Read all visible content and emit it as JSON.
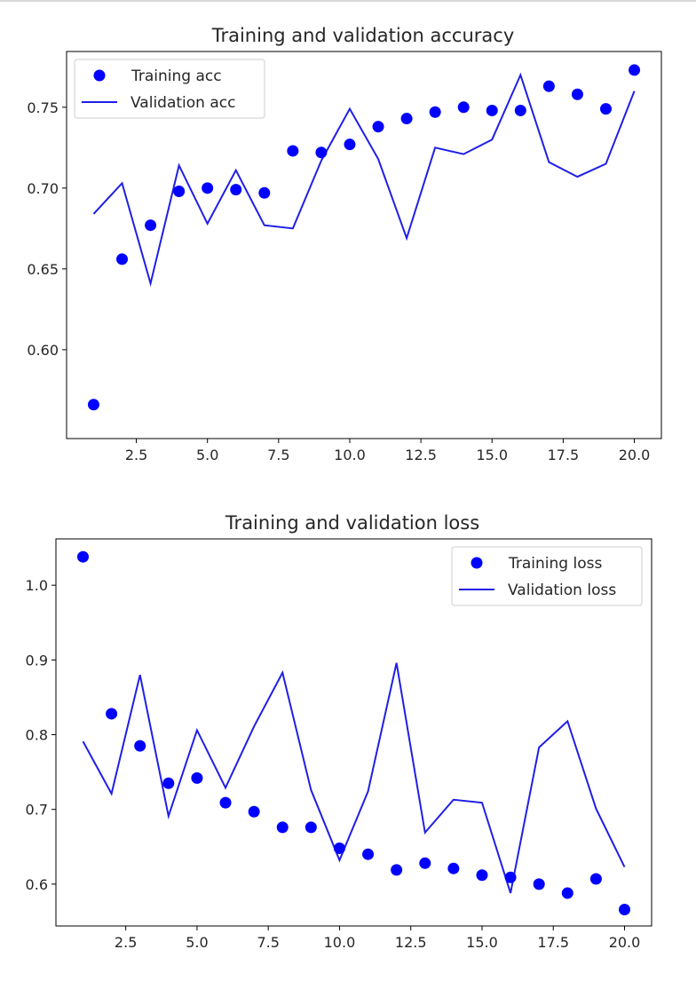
{
  "chart_data": [
    {
      "type": "line",
      "title": "Training and validation accuracy",
      "xlabel": "",
      "ylabel": "",
      "xlim": [
        0.05,
        20.95
      ],
      "ylim": [
        0.545,
        0.7845
      ],
      "x_ticks": [
        2.5,
        5.0,
        7.5,
        10.0,
        12.5,
        15.0,
        17.5,
        20.0
      ],
      "x_tick_labels": [
        "2.5",
        "5.0",
        "7.5",
        "10.0",
        "12.5",
        "15.0",
        "17.5",
        "20.0"
      ],
      "y_ticks": [
        0.6,
        0.65,
        0.7,
        0.75
      ],
      "y_tick_labels": [
        "0.60",
        "0.65",
        "0.70",
        "0.75"
      ],
      "legend_position": "upper-left",
      "x": [
        1,
        2,
        3,
        4,
        5,
        6,
        7,
        8,
        9,
        10,
        11,
        12,
        13,
        14,
        15,
        16,
        17,
        18,
        19,
        20
      ],
      "series": [
        {
          "name": "Training acc",
          "style": "points",
          "color": "#0000ff",
          "values": [
            0.566,
            0.656,
            0.677,
            0.698,
            0.7,
            0.699,
            0.697,
            0.723,
            0.722,
            0.727,
            0.738,
            0.743,
            0.747,
            0.75,
            0.748,
            0.748,
            0.763,
            0.758,
            0.749,
            0.773
          ]
        },
        {
          "name": "Validation acc",
          "style": "line",
          "color": "#1f1fe6",
          "values": [
            0.684,
            0.703,
            0.641,
            0.714,
            0.678,
            0.711,
            0.677,
            0.675,
            0.717,
            0.749,
            0.718,
            0.669,
            0.725,
            0.721,
            0.73,
            0.77,
            0.716,
            0.707,
            0.715,
            0.76
          ]
        }
      ]
    },
    {
      "type": "line",
      "title": "Training and validation loss",
      "xlabel": "",
      "ylabel": "",
      "xlim": [
        0.05,
        20.95
      ],
      "ylim": [
        0.544,
        1.062
      ],
      "x_ticks": [
        2.5,
        5.0,
        7.5,
        10.0,
        12.5,
        15.0,
        17.5,
        20.0
      ],
      "x_tick_labels": [
        "2.5",
        "5.0",
        "7.5",
        "10.0",
        "12.5",
        "15.0",
        "17.5",
        "20.0"
      ],
      "y_ticks": [
        0.6,
        0.7,
        0.8,
        0.9,
        1.0
      ],
      "y_tick_labels": [
        "0.6",
        "0.7",
        "0.8",
        "0.9",
        "1.0"
      ],
      "legend_position": "upper-right",
      "x": [
        1,
        2,
        3,
        4,
        5,
        6,
        7,
        8,
        9,
        10,
        11,
        12,
        13,
        14,
        15,
        16,
        17,
        18,
        19,
        20
      ],
      "series": [
        {
          "name": "Training loss",
          "style": "points",
          "color": "#0000ff",
          "values": [
            1.038,
            0.828,
            0.785,
            0.735,
            0.742,
            0.709,
            0.697,
            0.676,
            0.676,
            0.648,
            0.64,
            0.619,
            0.628,
            0.621,
            0.612,
            0.609,
            0.6,
            0.588,
            0.607,
            0.566
          ]
        },
        {
          "name": "Validation loss",
          "style": "line",
          "color": "#1f1fe6",
          "values": [
            0.791,
            0.721,
            0.88,
            0.691,
            0.806,
            0.729,
            0.811,
            0.883,
            0.726,
            0.632,
            0.724,
            0.896,
            0.669,
            0.713,
            0.709,
            0.588,
            0.783,
            0.818,
            0.701,
            0.623
          ]
        }
      ]
    }
  ]
}
